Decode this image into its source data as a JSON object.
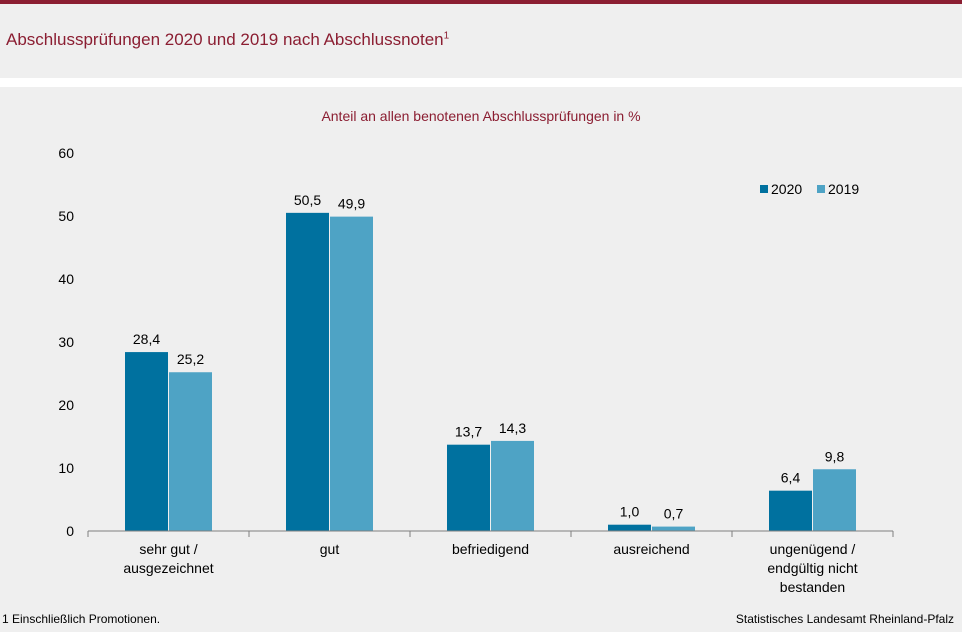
{
  "header": {
    "title": "Abschlussprüfungen 2020 und 2019 nach Abschlussnoten",
    "title_footnote_mark": "1"
  },
  "footer": {
    "footnote": "1 Einschließlich Promotionen.",
    "source": "Statistisches Landesamt Rheinland-Pfalz"
  },
  "colors": {
    "brand": "#8b1e32",
    "series_2020": "#00719f",
    "series_2019": "#4ea3c5",
    "background": "#efefef"
  },
  "chart_data": {
    "type": "bar",
    "subtitle": "Anteil an allen benotenen Abschlussprüfungen  in %",
    "categories": [
      [
        "sehr gut /",
        "ausgezeichnet"
      ],
      [
        "gut"
      ],
      [
        "befriedigend"
      ],
      [
        "ausreichend"
      ],
      [
        "ungenügend /",
        "endgültig nicht",
        "bestanden"
      ]
    ],
    "series": [
      {
        "name": "2020",
        "values": [
          28.4,
          50.5,
          13.7,
          1.0,
          6.4
        ],
        "labels": [
          "28,4",
          "50,5",
          "13,7",
          "1,0",
          "6,4"
        ]
      },
      {
        "name": "2019",
        "values": [
          25.2,
          49.9,
          14.3,
          0.7,
          9.8
        ],
        "labels": [
          "25,2",
          "49,9",
          "14,3",
          "0,7",
          "9,8"
        ]
      }
    ],
    "ylim": [
      0,
      60
    ],
    "yticks": [
      "0",
      "10",
      "20",
      "30",
      "40",
      "50",
      "60"
    ],
    "grid": false,
    "legend_position": "top-right"
  }
}
